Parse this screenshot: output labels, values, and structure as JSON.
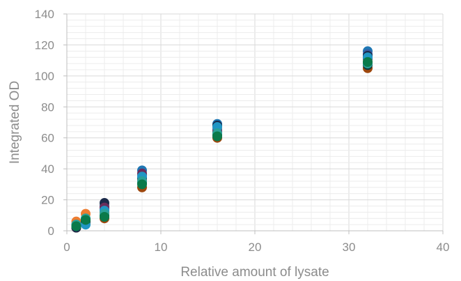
{
  "chart_data": {
    "type": "scatter",
    "title": "",
    "xlabel": "Relative amount of lysate",
    "ylabel": "Integrated OD",
    "xlim": [
      0,
      40
    ],
    "ylim": [
      0,
      140
    ],
    "x_ticks": [
      0,
      10,
      20,
      30,
      40
    ],
    "y_ticks": [
      0,
      20,
      40,
      60,
      80,
      100,
      120,
      140
    ],
    "grid": "major and minor, light gray",
    "legend": "none",
    "series": [
      {
        "color": "#1f77b4",
        "points": [
          [
            1,
            3
          ],
          [
            2,
            6
          ],
          [
            4,
            14
          ],
          [
            8,
            39
          ],
          [
            16,
            69
          ],
          [
            32,
            116
          ]
        ]
      },
      {
        "color": "#ed7d31",
        "points": [
          [
            1,
            6
          ],
          [
            2,
            11
          ],
          [
            4,
            12
          ],
          [
            8,
            33
          ],
          [
            16,
            66
          ],
          [
            32,
            109
          ]
        ]
      },
      {
        "color": "#3a5aa0",
        "points": [
          [
            1,
            4
          ],
          [
            2,
            7
          ],
          [
            4,
            16
          ],
          [
            8,
            36
          ],
          [
            16,
            65
          ],
          [
            32,
            114
          ]
        ]
      },
      {
        "color": "#9e480e",
        "points": [
          [
            1,
            2
          ],
          [
            2,
            5
          ],
          [
            4,
            8
          ],
          [
            8,
            28
          ],
          [
            16,
            60
          ],
          [
            32,
            105
          ]
        ]
      },
      {
        "color": "#1b2a4a",
        "points": [
          [
            1,
            2
          ],
          [
            2,
            6
          ],
          [
            4,
            18
          ],
          [
            8,
            34
          ],
          [
            16,
            68
          ],
          [
            32,
            113
          ]
        ]
      },
      {
        "color": "#6b2d5c",
        "points": [
          [
            1,
            3
          ],
          [
            2,
            7
          ],
          [
            4,
            15
          ],
          [
            8,
            37
          ],
          [
            16,
            64
          ],
          [
            32,
            111
          ]
        ]
      },
      {
        "color": "#0f3b3b",
        "points": [
          [
            1,
            3
          ],
          [
            2,
            6
          ],
          [
            4,
            10
          ],
          [
            8,
            31
          ],
          [
            16,
            62
          ],
          [
            32,
            107
          ]
        ]
      },
      {
        "color": "#2196c4",
        "points": [
          [
            1,
            3
          ],
          [
            2,
            4
          ],
          [
            4,
            13
          ],
          [
            8,
            35
          ],
          [
            16,
            67
          ],
          [
            32,
            112
          ]
        ]
      },
      {
        "color": "#2aa198",
        "points": [
          [
            1,
            4
          ],
          [
            2,
            8
          ],
          [
            4,
            11
          ],
          [
            8,
            32
          ],
          [
            16,
            63
          ],
          [
            32,
            108
          ]
        ]
      },
      {
        "color": "#0a7a4a",
        "points": [
          [
            1,
            3
          ],
          [
            2,
            7
          ],
          [
            4,
            9
          ],
          [
            8,
            30
          ],
          [
            16,
            61
          ],
          [
            32,
            109
          ]
        ]
      }
    ]
  }
}
